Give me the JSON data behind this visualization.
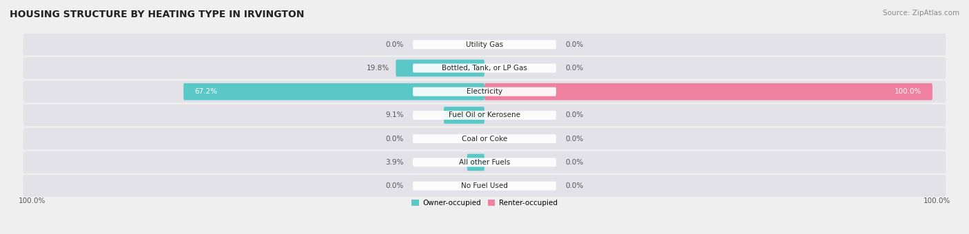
{
  "title": "HOUSING STRUCTURE BY HEATING TYPE IN IRVINGTON",
  "source": "Source: ZipAtlas.com",
  "categories": [
    "Utility Gas",
    "Bottled, Tank, or LP Gas",
    "Electricity",
    "Fuel Oil or Kerosene",
    "Coal or Coke",
    "All other Fuels",
    "No Fuel Used"
  ],
  "owner_values": [
    0.0,
    19.8,
    67.2,
    9.1,
    0.0,
    3.9,
    0.0
  ],
  "renter_values": [
    0.0,
    0.0,
    100.0,
    0.0,
    0.0,
    0.0,
    0.0
  ],
  "owner_color": "#5bc8c8",
  "renter_color": "#f080a0",
  "owner_label": "Owner-occupied",
  "renter_label": "Renter-occupied",
  "background_color": "#efefef",
  "row_bg_color": "#e2e2e8",
  "max_value": 100.0,
  "title_fontsize": 10,
  "label_fontsize": 7.5,
  "value_fontsize": 7.5,
  "axis_label_fontsize": 7.5,
  "source_fontsize": 7.5
}
